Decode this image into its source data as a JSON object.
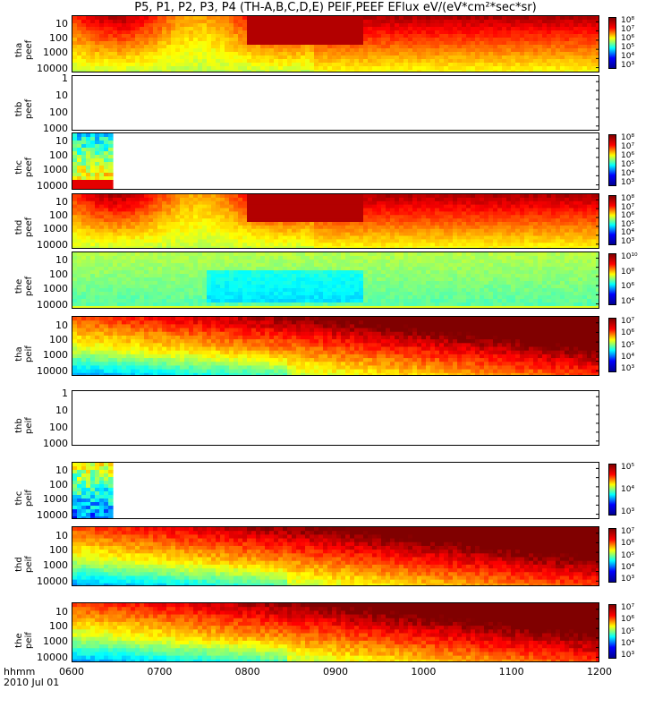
{
  "title": "P5, P1, P2, P3, P4 (TH-A,B,C,D,E) PEIF,PEEF EFlux eV/(eV*cm²*sec*sr)",
  "x_axis": {
    "label_line1": "hhmm",
    "label_line2": "2010 Jul 01",
    "ticks": [
      "0600",
      "0700",
      "0800",
      "0900",
      "1000",
      "1100",
      "1200"
    ]
  },
  "chart_data": {
    "type": "heatmap",
    "x_range": [
      "0600",
      "1200"
    ],
    "y_scale": "log",
    "panels": [
      {
        "probe": "tha",
        "product": "peef",
        "ylabel_probe": "tha",
        "ylabel_product": "peef",
        "ylim": [
          10,
          20000
        ],
        "y_ticks": [
          "10000",
          "1000",
          "100",
          "10"
        ],
        "has_data": true,
        "colorbar_labels": [
          "10⁸",
          "10⁷",
          "10⁶",
          "10⁵",
          "10⁴",
          "10³"
        ]
      },
      {
        "probe": "thb",
        "product": "peef",
        "ylabel_probe": "thb",
        "ylabel_product": "peef",
        "ylim": [
          1,
          1000
        ],
        "y_ticks": [
          "1000",
          "100",
          "10",
          "1"
        ],
        "has_data": false,
        "colorbar_labels": []
      },
      {
        "probe": "thc",
        "product": "peef",
        "ylabel_probe": "thc",
        "ylabel_product": "peef",
        "ylim": [
          10,
          20000
        ],
        "y_ticks": [
          "10000",
          "1000",
          "100",
          "10"
        ],
        "has_data": true,
        "data_end": "0645",
        "colorbar_labels": [
          "10⁸",
          "10⁷",
          "10⁶",
          "10⁵",
          "10⁴",
          "10³"
        ]
      },
      {
        "probe": "thd",
        "product": "peef",
        "ylabel_probe": "thd",
        "ylabel_product": "peef",
        "ylim": [
          10,
          20000
        ],
        "y_ticks": [
          "10000",
          "1000",
          "100",
          "10"
        ],
        "has_data": true,
        "colorbar_labels": [
          "10⁸",
          "10⁷",
          "10⁶",
          "10⁵",
          "10⁴",
          "10³"
        ]
      },
      {
        "probe": "the",
        "product": "peef",
        "ylabel_probe": "the",
        "ylabel_product": "peef",
        "ylim": [
          10,
          20000
        ],
        "y_ticks": [
          "10000",
          "1000",
          "100",
          "10"
        ],
        "has_data": true,
        "colorbar_labels": [
          "10¹⁰",
          "10⁸",
          "10⁶",
          "10⁴"
        ]
      },
      {
        "probe": "tha",
        "product": "peif",
        "ylabel_probe": "tha",
        "ylabel_product": "peif",
        "ylim": [
          10,
          20000
        ],
        "y_ticks": [
          "10000",
          "1000",
          "100",
          "10"
        ],
        "has_data": true,
        "colorbar_labels": [
          "10⁷",
          "10⁶",
          "10⁵",
          "10⁴",
          "10³"
        ]
      },
      {
        "probe": "thb",
        "product": "peif",
        "ylabel_probe": "thb",
        "ylabel_product": "peif",
        "ylim": [
          1,
          1000
        ],
        "y_ticks": [
          "1000",
          "100",
          "10",
          "1"
        ],
        "has_data": false,
        "colorbar_labels": []
      },
      {
        "probe": "thc",
        "product": "peif",
        "ylabel_probe": "thc",
        "ylabel_product": "peif",
        "ylim": [
          10,
          20000
        ],
        "y_ticks": [
          "10000",
          "1000",
          "100",
          "10"
        ],
        "has_data": true,
        "data_end": "0645",
        "colorbar_labels": [
          "10⁵",
          "10⁴",
          "10³"
        ]
      },
      {
        "probe": "thd",
        "product": "peif",
        "ylabel_probe": "thd",
        "ylabel_product": "peif",
        "ylim": [
          10,
          20000
        ],
        "y_ticks": [
          "10000",
          "1000",
          "100",
          "10"
        ],
        "has_data": true,
        "colorbar_labels": [
          "10⁷",
          "10⁶",
          "10⁵",
          "10⁴",
          "10³"
        ]
      },
      {
        "probe": "the",
        "product": "peif",
        "ylabel_probe": "the",
        "ylabel_product": "peif",
        "ylim": [
          10,
          20000
        ],
        "y_ticks": [
          "10000",
          "1000",
          "100",
          "10"
        ],
        "has_data": true,
        "colorbar_labels": [
          "10⁷",
          "10⁶",
          "10⁵",
          "10⁴",
          "10³"
        ]
      }
    ]
  }
}
